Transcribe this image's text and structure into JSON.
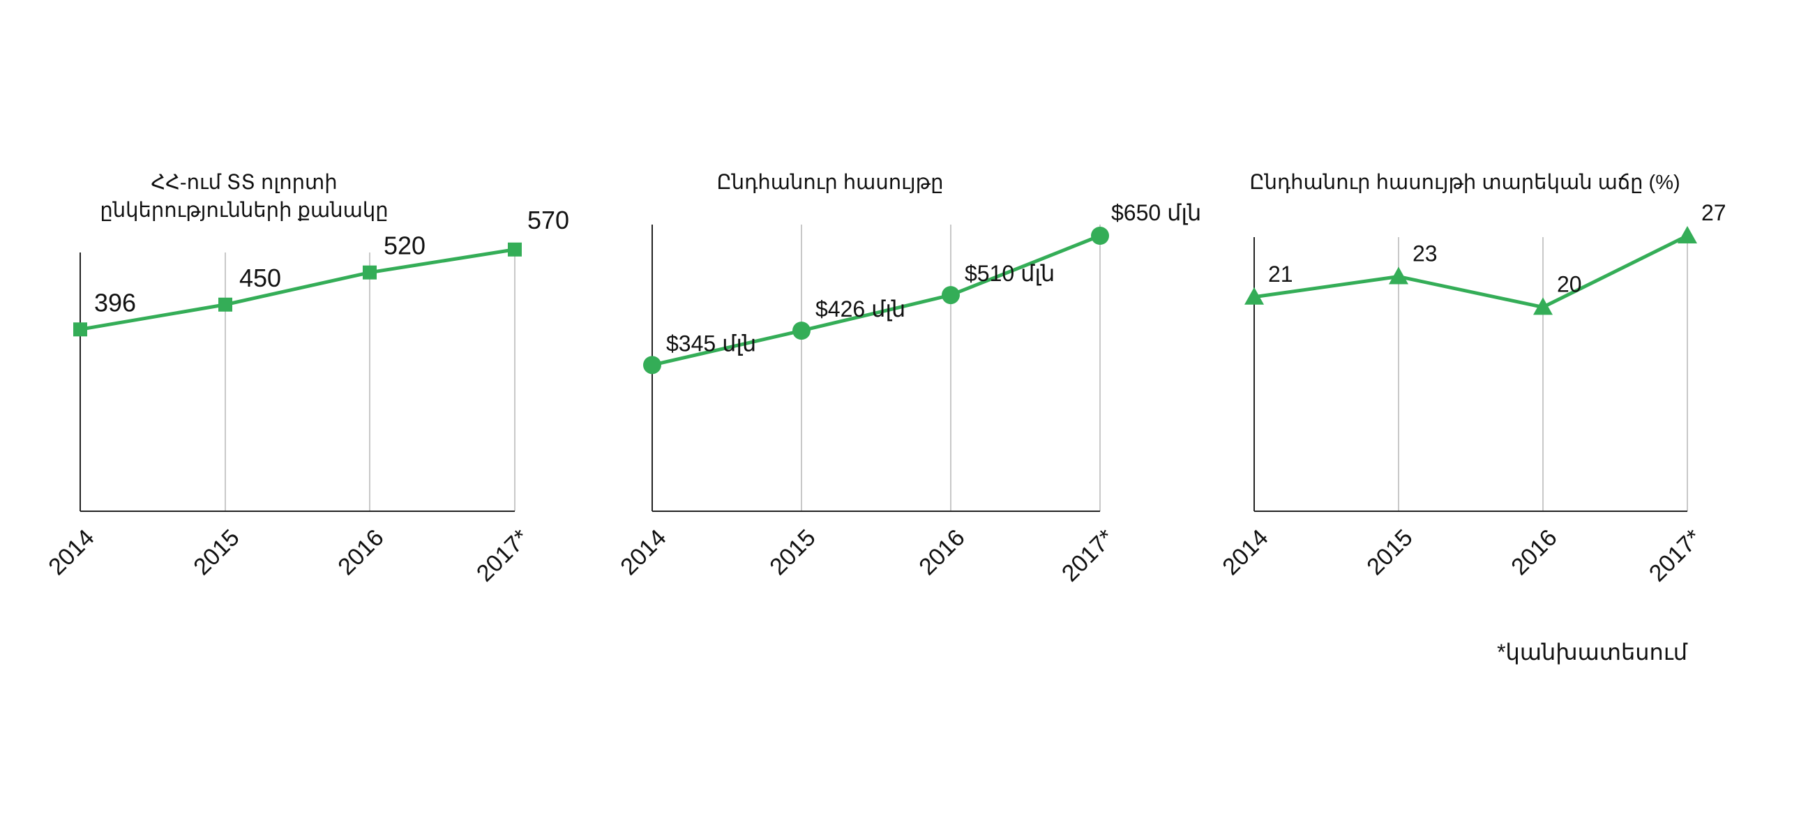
{
  "accent_color": "#34ad57",
  "footnote": "*կանխատեսում",
  "chart_data": [
    {
      "type": "line",
      "title": "ՀՀ-ում ՏՏ ոլորտի ընկերությունների քանակը",
      "categories": [
        "2014",
        "2015",
        "2016",
        "2017*"
      ],
      "values": [
        396,
        450,
        520,
        570
      ],
      "data_labels": [
        "396",
        "450",
        "520",
        "570"
      ],
      "marker": "square",
      "ylim": [
        0,
        600
      ],
      "grid": "vertical"
    },
    {
      "type": "line",
      "title": "Ընդհանուր հասույթը",
      "categories": [
        "2014",
        "2015",
        "2016",
        "2017*"
      ],
      "values": [
        345,
        426,
        510,
        650
      ],
      "data_labels": [
        "$345 մլն",
        "$426 մլն",
        "$510 մլն",
        "$650 մլն"
      ],
      "marker": "circle",
      "ylim": [
        0,
        650
      ],
      "grid": "vertical"
    },
    {
      "type": "line",
      "title": "Ընդհանուր հասույթի տարեկան աճը (%)",
      "categories": [
        "2014",
        "2015",
        "2016",
        "2017*"
      ],
      "values": [
        21,
        23,
        20,
        27
      ],
      "data_labels": [
        "21",
        "23",
        "20",
        "27"
      ],
      "marker": "triangle",
      "ylim": [
        0,
        27
      ],
      "grid": "vertical"
    }
  ]
}
